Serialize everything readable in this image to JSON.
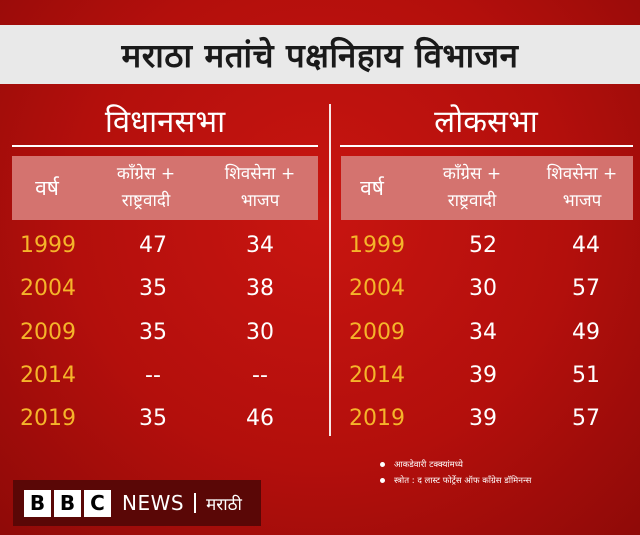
{
  "title": "मराठा मतांचे पक्षनिहाय विभाजन",
  "sections": [
    {
      "heading": "विधानसभा",
      "header": {
        "year": "वर्ष",
        "col1_line1": "काँग्रेस +",
        "col1_line2": "राष्ट्रवादी",
        "col2_line1": "शिवसेना +",
        "col2_line2": "भाजप"
      },
      "rows": [
        {
          "year": "1999",
          "col1": "47",
          "col2": "34"
        },
        {
          "year": "2004",
          "col1": "35",
          "col2": "38"
        },
        {
          "year": "2009",
          "col1": "35",
          "col2": "30"
        },
        {
          "year": "2014",
          "col1": "--",
          "col2": "--"
        },
        {
          "year": "2019",
          "col1": "35",
          "col2": "46"
        }
      ]
    },
    {
      "heading": "लोकसभा",
      "header": {
        "year": "वर्ष",
        "col1_line1": "काँग्रेस +",
        "col1_line2": "राष्ट्रवादी",
        "col2_line1": "शिवसेना +",
        "col2_line2": "भाजप"
      },
      "rows": [
        {
          "year": "1999",
          "col1": "52",
          "col2": "44"
        },
        {
          "year": "2004",
          "col1": "30",
          "col2": "57"
        },
        {
          "year": "2009",
          "col1": "34",
          "col2": "49"
        },
        {
          "year": "2014",
          "col1": "39",
          "col2": "51"
        },
        {
          "year": "2019",
          "col1": "39",
          "col2": "57"
        }
      ]
    }
  ],
  "notes": [
    "आकडेवारी टक्क्यांमध्ये",
    "स्त्रोत : द लास्ट फोर्ट्रेस ऑफ काँग्रेस डॉमिनन्स"
  ],
  "brand": {
    "letters": [
      "B",
      "B",
      "C"
    ],
    "news": "NEWS",
    "language": "मराठी"
  },
  "colors": {
    "background": "#b30f0c",
    "title_bar": "#e9e9e9",
    "header_band": "#d4736f",
    "year_text": "#f5b52a",
    "brand_box": "#5a0706"
  }
}
